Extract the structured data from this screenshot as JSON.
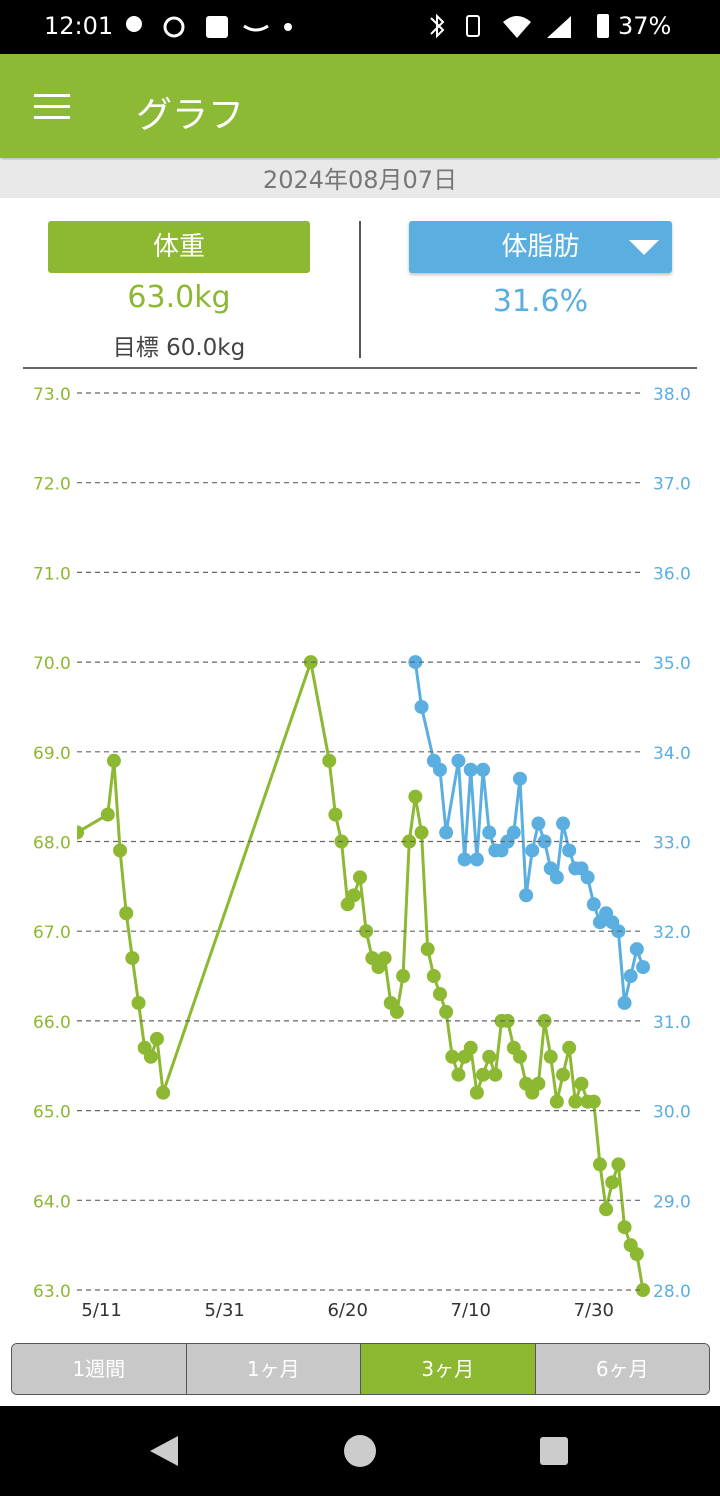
{
  "status_bar": {
    "time": "12:01",
    "battery": "37%"
  },
  "app_bar": {
    "title": "グラフ"
  },
  "date": "2024年08月07日",
  "metrics": [
    {
      "label": "体重",
      "value": "63.0kg",
      "goal": "目標 60.0kg"
    },
    {
      "label": "体脂肪",
      "value": "31.6%"
    }
  ],
  "chart_data": {
    "type": "line",
    "xlim": [
      "5/7",
      "8/7"
    ],
    "xticks": [
      "5/11",
      "5/31",
      "6/20",
      "7/10",
      "7/30"
    ],
    "ylim": [
      63,
      73
    ],
    "yticks": [
      {
        "value": 63,
        "label": "63.0"
      },
      {
        "value": 64,
        "label": "64.0"
      },
      {
        "value": 65,
        "label": "65.0"
      },
      {
        "value": 66,
        "label": "66.0"
      },
      {
        "value": 67,
        "label": "67.0"
      },
      {
        "value": 68,
        "label": "68.0"
      },
      {
        "value": 69,
        "label": "69.0"
      },
      {
        "value": 70,
        "label": "70.0"
      },
      {
        "value": 71,
        "label": "71.0"
      },
      {
        "value": 72,
        "label": "72.0"
      },
      {
        "value": 73,
        "label": "73.0"
      }
    ],
    "y2lim": [
      28,
      38
    ],
    "y2ticks": [
      {
        "value": 28,
        "label": "28.0"
      },
      {
        "value": 29,
        "label": "29.0"
      },
      {
        "value": 30,
        "label": "30.0"
      },
      {
        "value": 31,
        "label": "31.0"
      },
      {
        "value": 32,
        "label": "32.0"
      },
      {
        "value": 33,
        "label": "33.0"
      },
      {
        "value": 34,
        "label": "34.0"
      },
      {
        "value": 35,
        "label": "35.0"
      },
      {
        "value": 36,
        "label": "36.0"
      },
      {
        "value": 37,
        "label": "37.0"
      },
      {
        "value": 38,
        "label": "38.0"
      }
    ],
    "grid": true,
    "y_color": "#8cb832",
    "y2_color": "#5aaee0",
    "series": [
      {
        "color": "#8cb832",
        "x": [
          "5/7",
          "5/12",
          "5/13",
          "5/14",
          "5/15",
          "5/16",
          "5/17",
          "5/18",
          "5/19",
          "5/20",
          "5/21",
          "6/14",
          "6/17",
          "6/18",
          "6/19",
          "6/20",
          "6/21",
          "6/22",
          "6/23",
          "6/24",
          "6/25",
          "6/26",
          "6/27",
          "6/28",
          "6/29",
          "6/30",
          "7/1",
          "7/2",
          "7/3",
          "7/4",
          "7/5",
          "7/6",
          "7/7",
          "7/8",
          "7/9",
          "7/10",
          "7/11",
          "7/12",
          "7/13",
          "7/14",
          "7/15",
          "7/16",
          "7/17",
          "7/18",
          "7/19",
          "7/20",
          "7/21",
          "7/22",
          "7/23",
          "7/24",
          "7/25",
          "7/26",
          "7/27",
          "7/28",
          "7/29",
          "7/30",
          "7/31",
          "8/1",
          "8/2",
          "8/3",
          "8/4",
          "8/5",
          "8/6",
          "8/7"
        ],
        "values": [
          68.1,
          68.3,
          68.9,
          67.9,
          67.2,
          66.7,
          66.2,
          65.7,
          65.6,
          65.8,
          65.2,
          70.0,
          68.9,
          68.3,
          68.0,
          67.3,
          67.4,
          67.6,
          67.0,
          66.7,
          66.6,
          66.7,
          66.2,
          66.1,
          66.5,
          68.0,
          68.5,
          68.1,
          66.8,
          66.5,
          66.3,
          66.1,
          65.6,
          65.4,
          65.6,
          65.7,
          65.2,
          65.4,
          65.6,
          65.4,
          66.0,
          66.0,
          65.7,
          65.6,
          65.3,
          65.2,
          65.3,
          66.0,
          65.6,
          65.1,
          65.4,
          65.7,
          65.1,
          65.3,
          65.1,
          65.1,
          64.4,
          63.9,
          64.2,
          64.4,
          63.7,
          63.5,
          63.4,
          63.0
        ]
      },
      {
        "color": "#5aaee0",
        "axis": "y2",
        "x": [
          "7/1",
          "7/2",
          "7/4",
          "7/5",
          "7/6",
          "7/8",
          "7/9",
          "7/10",
          "7/11",
          "7/12",
          "7/13",
          "7/14",
          "7/15",
          "7/16",
          "7/17",
          "7/18",
          "7/19",
          "7/20",
          "7/21",
          "7/22",
          "7/23",
          "7/24",
          "7/25",
          "7/26",
          "7/27",
          "7/28",
          "7/29",
          "7/30",
          "7/31",
          "8/1",
          "8/2",
          "8/3",
          "8/4",
          "8/5",
          "8/6",
          "8/7"
        ],
        "values": [
          35.0,
          34.5,
          33.9,
          33.8,
          33.1,
          33.9,
          32.8,
          33.8,
          32.8,
          33.8,
          33.1,
          32.9,
          32.9,
          33.0,
          33.1,
          33.7,
          32.4,
          32.9,
          33.2,
          33.0,
          32.7,
          32.6,
          33.2,
          32.9,
          32.7,
          32.7,
          32.6,
          32.3,
          32.1,
          32.2,
          32.1,
          32.0,
          31.2,
          31.5,
          31.8,
          31.6
        ]
      }
    ]
  },
  "tabs": [
    "1週間",
    "1ヶ月",
    "3ヶ月",
    "6ヶ月"
  ],
  "selected_tab": 2
}
